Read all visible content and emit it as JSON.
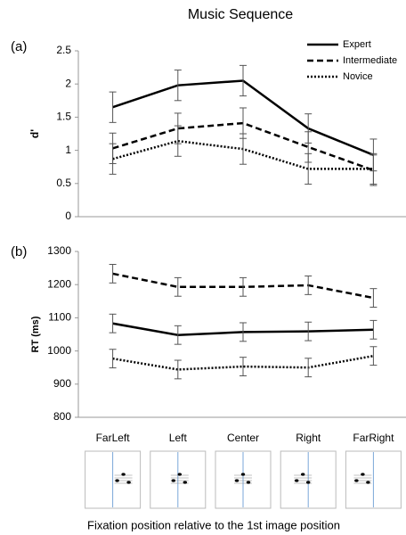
{
  "chart_data": [
    {
      "type": "line",
      "title": "Music Sequence",
      "panel_label": "(a)",
      "ylabel": "d'",
      "ylim": [
        0,
        2.5
      ],
      "yticks": [
        0,
        0.5,
        1,
        1.5,
        2,
        2.5
      ],
      "grid": false,
      "legend": "upper right",
      "series": [
        {
          "name": "Expert",
          "color": "#000000",
          "linestyle": "solid",
          "values": [
            1.65,
            1.98,
            2.05,
            1.33,
            0.93
          ],
          "errors": [
            0.23,
            0.23,
            0.23,
            0.22,
            0.24
          ]
        },
        {
          "name": "Intermediate",
          "color": "#000000",
          "linestyle": "dashed",
          "values": [
            1.03,
            1.33,
            1.41,
            1.05,
            0.7
          ],
          "errors": [
            0.23,
            0.23,
            0.23,
            0.23,
            0.23
          ]
        },
        {
          "name": "Novice",
          "color": "#000000",
          "linestyle": "dotted",
          "values": [
            0.87,
            1.14,
            1.02,
            0.72,
            0.72
          ],
          "errors": [
            0.23,
            0.23,
            0.23,
            0.23,
            0.23
          ]
        }
      ]
    },
    {
      "type": "line",
      "panel_label": "(b)",
      "ylabel": "RT (ms)",
      "xlabel": "Fixation position relative to the 1st image position",
      "categories": [
        "FarLeft",
        "Left",
        "Center",
        "Right",
        "FarRight"
      ],
      "ylim": [
        800,
        1300
      ],
      "yticks": [
        800,
        900,
        1000,
        1100,
        1200,
        1300
      ],
      "grid": false,
      "series": [
        {
          "color": "#000000",
          "linestyle": "solid",
          "values": [
            1083,
            1048,
            1057,
            1059,
            1064
          ],
          "errors": [
            28,
            28,
            28,
            28,
            28
          ]
        },
        {
          "color": "#000000",
          "linestyle": "dashed",
          "values": [
            1233,
            1193,
            1193,
            1198,
            1160
          ],
          "errors": [
            28,
            28,
            28,
            28,
            28
          ]
        },
        {
          "color": "#000000",
          "linestyle": "dotted",
          "values": [
            977,
            944,
            953,
            950,
            985
          ],
          "errors": [
            28,
            28,
            28,
            28,
            28
          ]
        }
      ]
    }
  ]
}
